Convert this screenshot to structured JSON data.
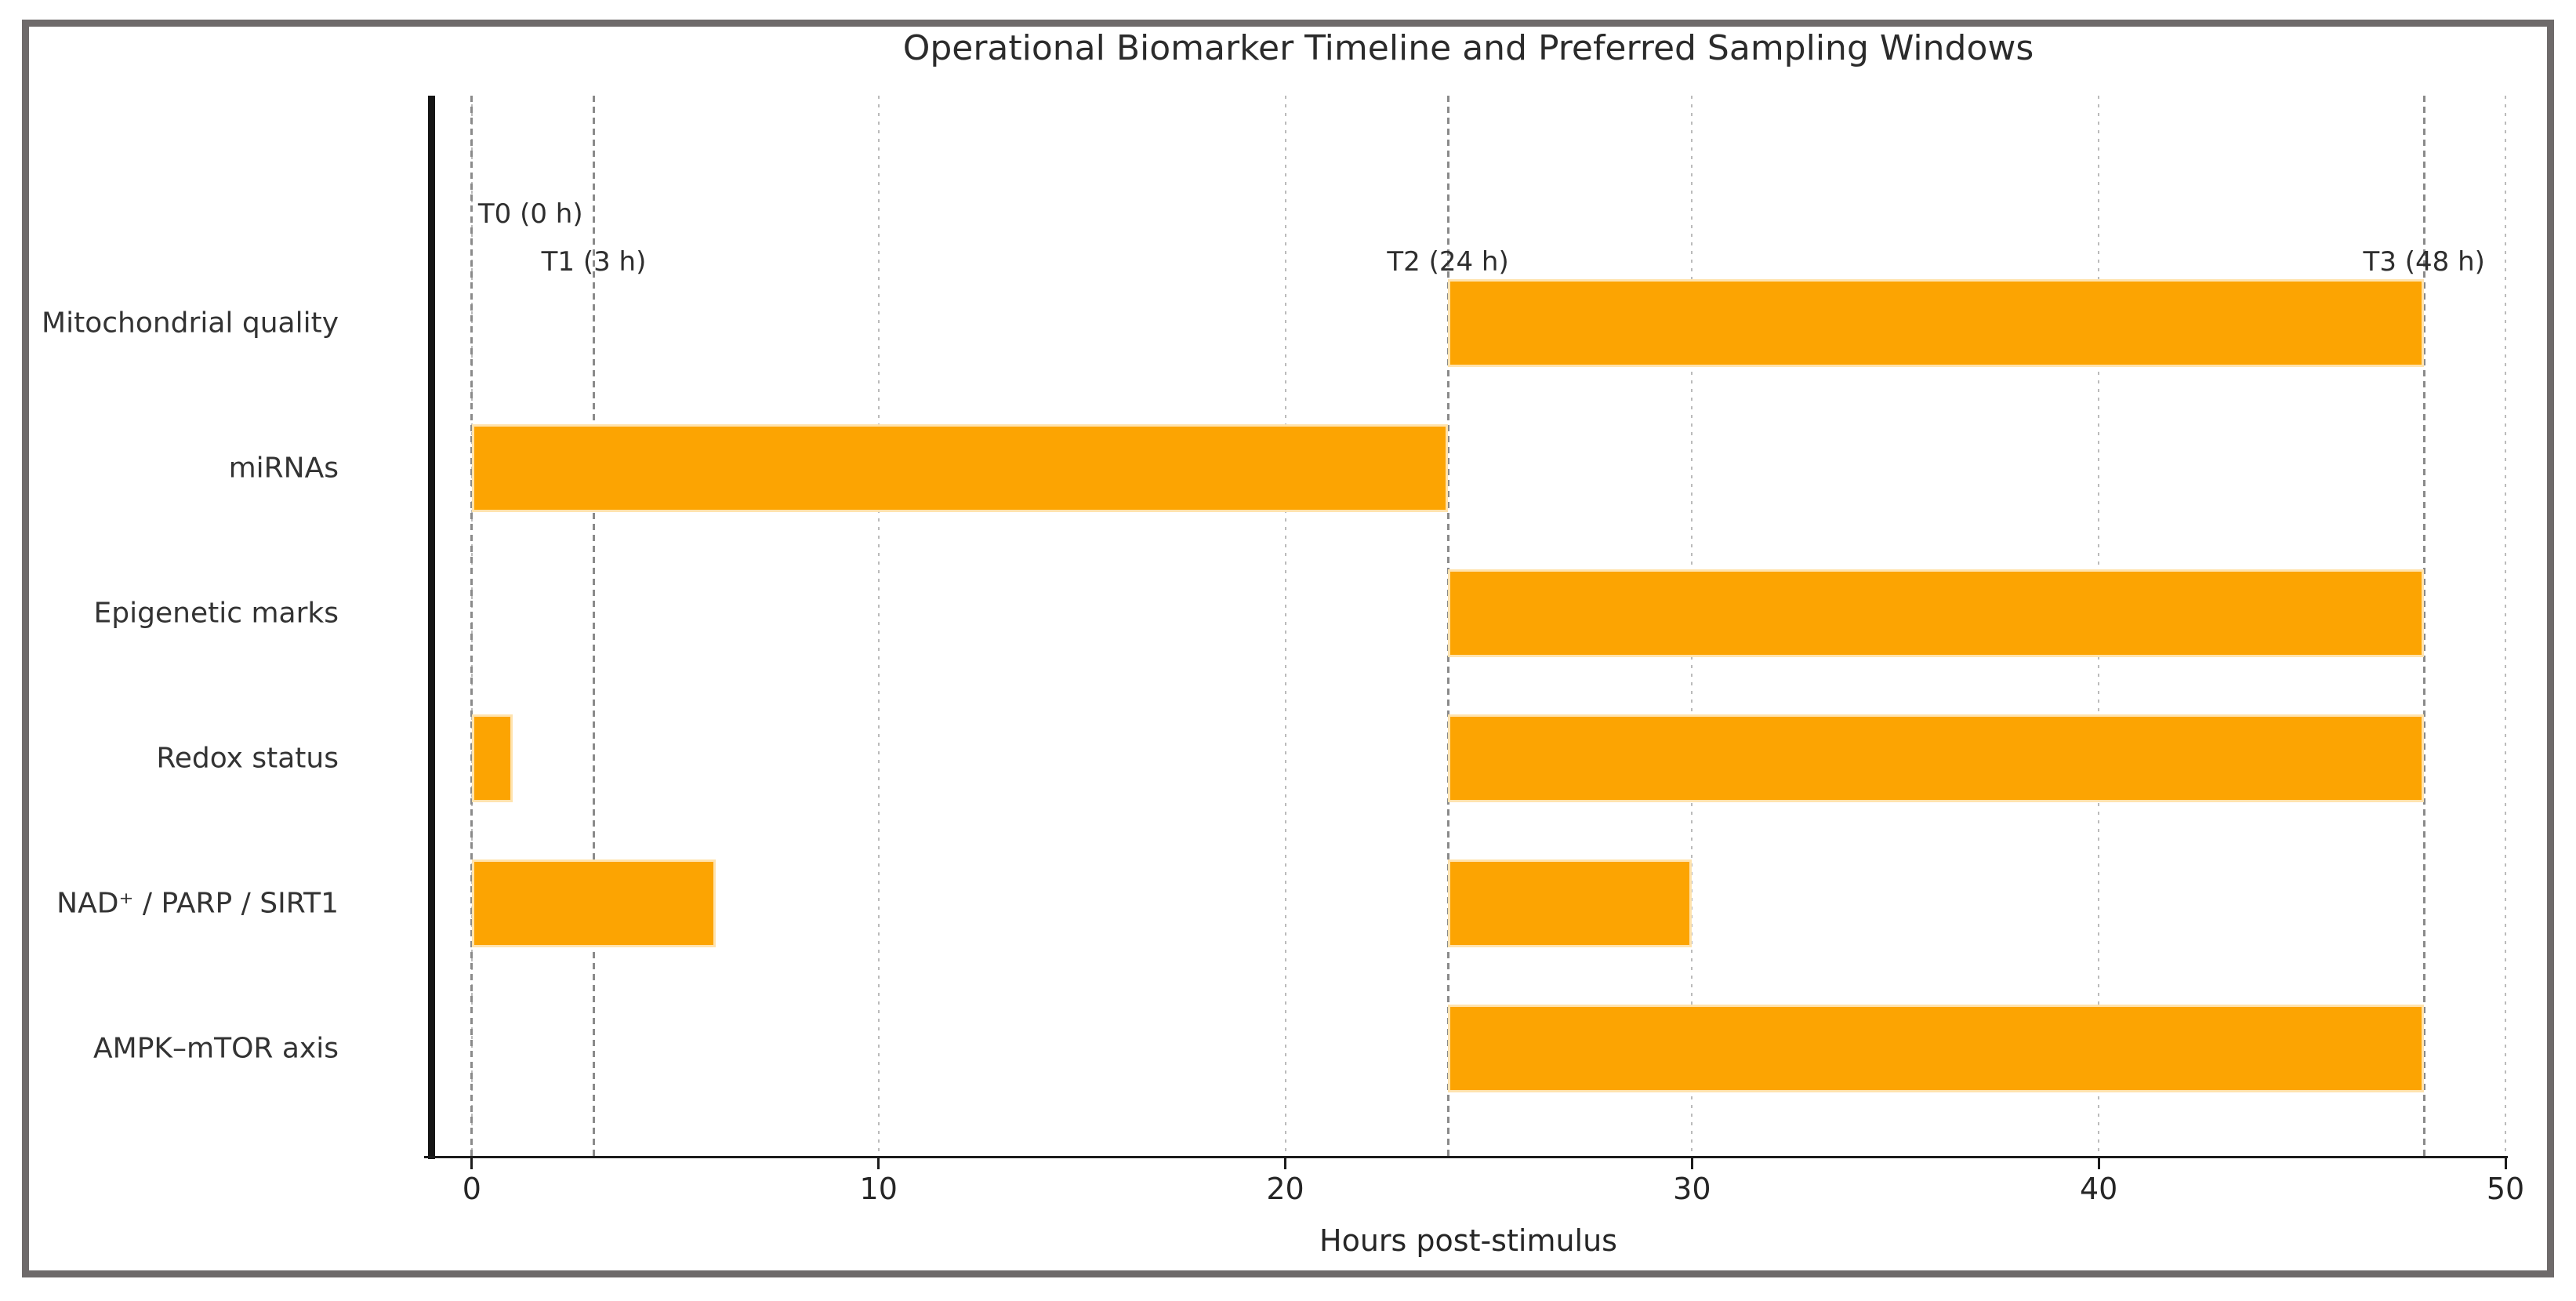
{
  "frame": {
    "border_color": "#6e6a6a"
  },
  "chart_data": {
    "type": "bar",
    "variant": "horizontal-gantt",
    "title": "Operational Biomarker Timeline and Preferred Sampling Windows",
    "xlabel": "Hours post-stimulus",
    "xlim": [
      -1,
      50
    ],
    "xticks": [
      0,
      10,
      20,
      30,
      40,
      50
    ],
    "grid": {
      "show": true,
      "style": "dotted",
      "color": "#bbbbbb",
      "orientation": "vertical"
    },
    "legend": "none",
    "bar": {
      "color": "#FCA402",
      "edge_color": "#FFE3AE"
    },
    "marker_line_style": {
      "style": "dashed",
      "color": "#8a8a8a"
    },
    "axis": {
      "spine_color": "#151515",
      "text_color": "#262626"
    },
    "categories": [
      "Mitochondrial quality",
      "miRNAs",
      "Epigenetic marks",
      "Redox status",
      "NAD⁺ / PARP / SIRT1",
      "AMPK–mTOR axis"
    ],
    "series": [
      {
        "name": "Mitochondrial quality",
        "intervals": [
          [
            24,
            48
          ]
        ]
      },
      {
        "name": "miRNAs",
        "intervals": [
          [
            0,
            24
          ]
        ]
      },
      {
        "name": "Epigenetic marks",
        "intervals": [
          [
            24,
            48
          ]
        ]
      },
      {
        "name": "Redox status",
        "intervals": [
          [
            0,
            1
          ],
          [
            24,
            48
          ]
        ]
      },
      {
        "name": "NAD⁺ / PARP / SIRT1",
        "intervals": [
          [
            0,
            6
          ],
          [
            24,
            30
          ]
        ]
      },
      {
        "name": "AMPK–mTOR axis",
        "intervals": [
          [
            24,
            48
          ]
        ]
      }
    ],
    "markers": [
      {
        "label": "T0 (0 h)",
        "x": 0,
        "align": "left",
        "level": 1
      },
      {
        "label": "T1 (3 h)",
        "x": 3,
        "align": "center",
        "level": 2
      },
      {
        "label": "T2 (24 h)",
        "x": 24,
        "align": "center",
        "level": 2
      },
      {
        "label": "T3 (48 h)",
        "x": 48,
        "align": "center",
        "level": 2
      }
    ]
  }
}
